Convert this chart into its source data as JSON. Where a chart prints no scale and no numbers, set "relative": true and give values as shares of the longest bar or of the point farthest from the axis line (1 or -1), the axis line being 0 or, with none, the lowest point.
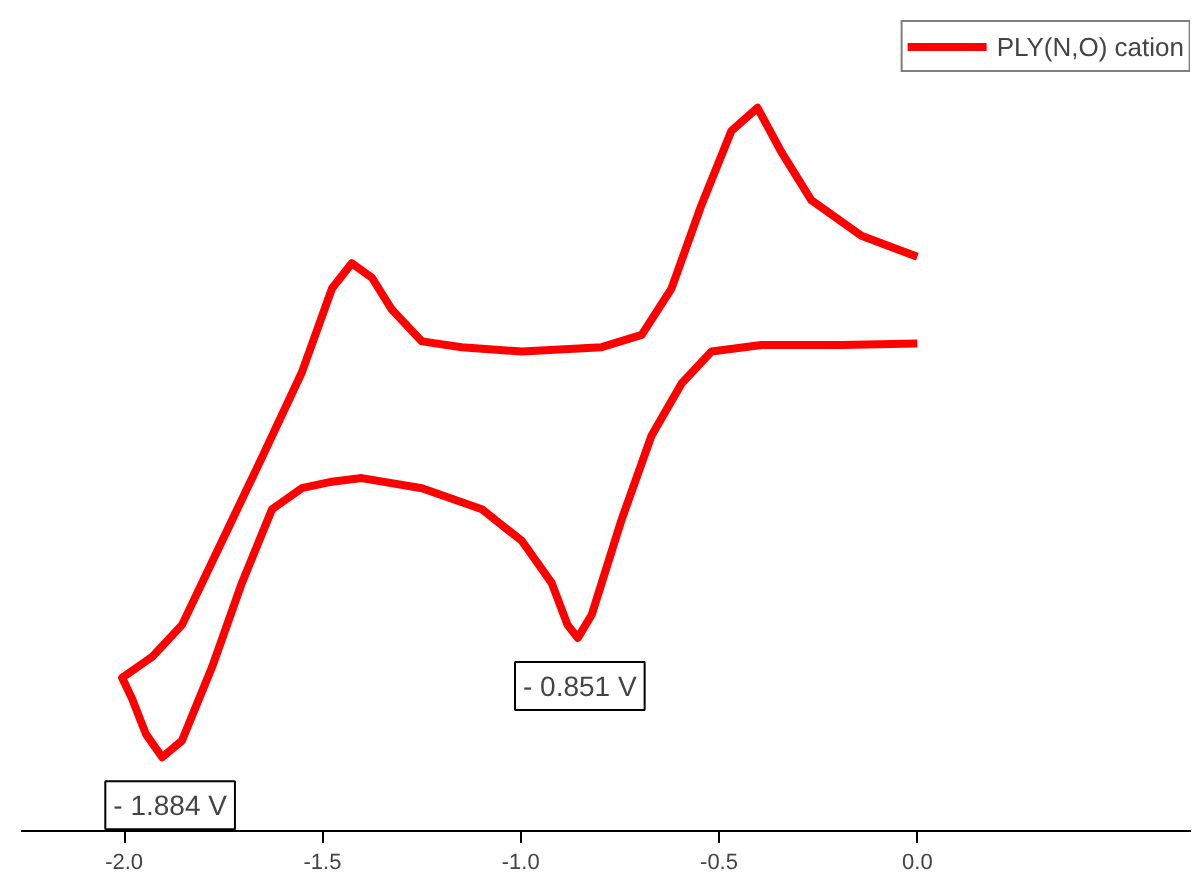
{
  "chart_data": {
    "type": "line",
    "relative": true,
    "legend": "top right",
    "grid": false,
    "marker": "none",
    "line_style": "solid",
    "xlim": [
      -2.26,
      0.69
    ],
    "xticks": [
      {
        "value": -2.0,
        "label": "-2.0"
      },
      {
        "value": -1.5,
        "label": "-1.5"
      },
      {
        "value": -1.0,
        "label": "-1.0"
      },
      {
        "value": -0.5,
        "label": "-0.5"
      },
      {
        "value": 0.0,
        "label": "0.0"
      }
    ],
    "series": [
      {
        "name": "PLY(N,O) cation",
        "color": "#ff0000",
        "x": [
          0.0,
          -0.141,
          -0.267,
          -0.343,
          -0.403,
          -0.469,
          -0.544,
          -0.62,
          -0.695,
          -0.796,
          -0.997,
          -1.149,
          -1.249,
          -1.325,
          -1.375,
          -1.426,
          -1.476,
          -1.552,
          -1.652,
          -1.753,
          -1.854,
          -1.929,
          -2.005,
          -1.98,
          -1.945,
          -1.904,
          -1.854,
          -1.778,
          -1.703,
          -1.627,
          -1.552,
          -1.476,
          -1.401,
          -1.249,
          -1.098,
          -0.997,
          -0.922,
          -0.882,
          -0.856,
          -0.821,
          -0.746,
          -0.67,
          -0.594,
          -0.519,
          -0.393,
          -0.191,
          0.0
        ],
        "values": [
          0.794,
          0.823,
          0.872,
          0.939,
          1.0,
          0.968,
          0.866,
          0.75,
          0.686,
          0.669,
          0.663,
          0.669,
          0.677,
          0.721,
          0.765,
          0.785,
          0.75,
          0.634,
          0.517,
          0.401,
          0.285,
          0.241,
          0.212,
          0.183,
          0.134,
          0.102,
          0.125,
          0.227,
          0.343,
          0.445,
          0.474,
          0.483,
          0.488,
          0.474,
          0.445,
          0.401,
          0.343,
          0.285,
          0.267,
          0.299,
          0.43,
          0.547,
          0.619,
          0.663,
          0.672,
          0.672,
          0.674
        ]
      }
    ],
    "annotations": [
      {
        "text": "- 0.851 V",
        "x": -0.851,
        "y": 0.267
      },
      {
        "text": "- 1.884 V",
        "x": -1.884,
        "y": 0.102
      }
    ]
  }
}
